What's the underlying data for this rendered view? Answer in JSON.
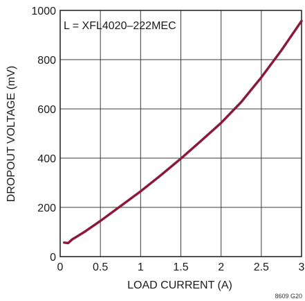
{
  "chart_data": {
    "type": "line",
    "xlabel": "LOAD CURRENT (A)",
    "ylabel": "DROPOUT VOLTAGE (mV)",
    "xlim": [
      0,
      3
    ],
    "ylim": [
      0,
      1000
    ],
    "xticks": [
      0,
      0.5,
      1,
      1.5,
      2,
      2.5,
      3
    ],
    "xtick_labels": [
      "0",
      "0.5",
      "1",
      "1.5",
      "2",
      "2.5",
      "3"
    ],
    "yticks": [
      0,
      200,
      400,
      600,
      800,
      1000
    ],
    "ytick_labels": [
      "0",
      "200",
      "400",
      "600",
      "800",
      "1000"
    ],
    "grid": true,
    "annotation": "L = XFL4020–222MEC",
    "figure_code": "8609 G20",
    "line_color": "#8b1a3a",
    "series": [
      {
        "x": [
          0.05,
          0.1,
          0.15,
          0.2,
          0.3,
          0.5,
          0.75,
          1.0,
          1.25,
          1.5,
          1.75,
          2.0,
          2.25,
          2.5,
          2.75,
          3.0
        ],
        "values": [
          57,
          55,
          70,
          80,
          100,
          145,
          205,
          265,
          330,
          398,
          470,
          543,
          628,
          728,
          838,
          957
        ]
      }
    ]
  }
}
